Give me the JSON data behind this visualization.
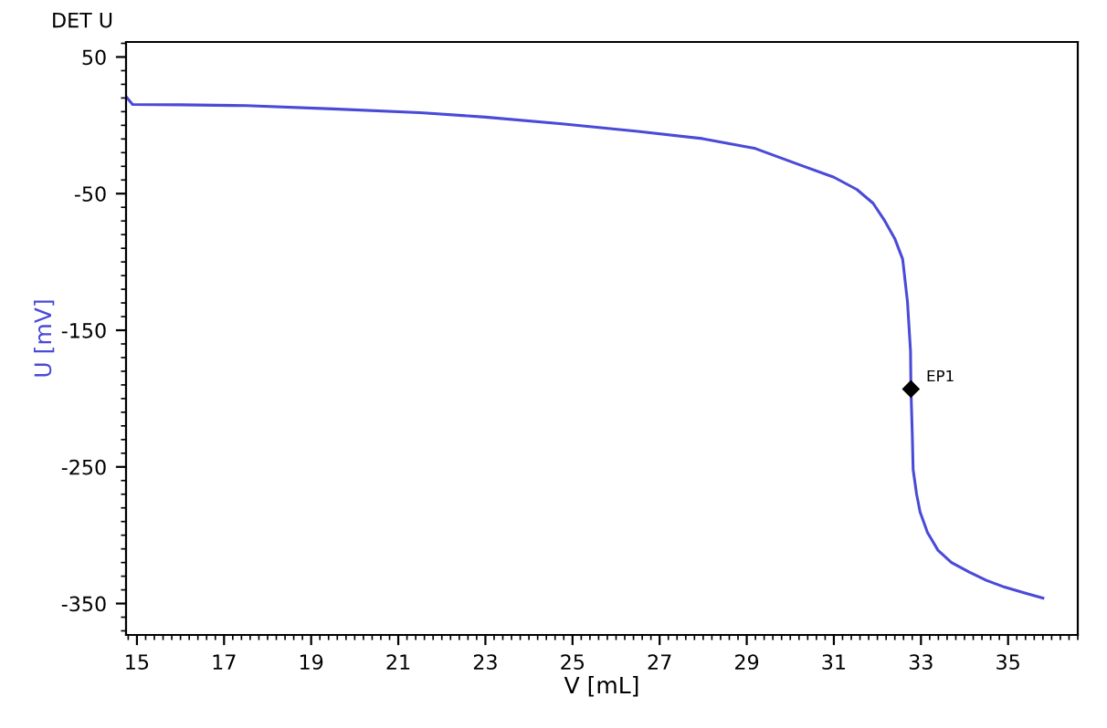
{
  "chart_data": {
    "type": "line",
    "title": "DET U",
    "xlabel": "V [mL]",
    "ylabel": "U [mV]",
    "x": [
      14.76,
      14.9,
      16.0,
      17.5,
      19.5,
      21.5,
      23.0,
      24.76,
      26.5,
      27.98,
      29.2,
      30.24,
      31.0,
      31.53,
      31.9,
      32.17,
      32.4,
      32.58,
      32.69,
      32.76,
      32.77,
      32.8,
      32.82,
      32.9,
      32.98,
      33.15,
      33.39,
      33.7,
      34.11,
      34.5,
      34.92,
      35.4,
      35.8
    ],
    "series": [
      {
        "color": "#4a4ad8",
        "values": [
          20.7,
          15.3,
          15.0,
          14.4,
          12.0,
          9.3,
          6.0,
          1.1,
          -4.5,
          -9.7,
          -17.0,
          -29.2,
          -38.0,
          -47.0,
          -57.0,
          -70.0,
          -83.0,
          -98.0,
          -129.0,
          -165.0,
          -193.0,
          -225.0,
          -252.0,
          -270.0,
          -283.0,
          -298.0,
          -311.0,
          -320.0,
          -327.0,
          -333.0,
          -338.0,
          -342.5,
          -346.0
        ]
      }
    ],
    "annotations": [
      {
        "text": "EP1",
        "x": 32.77,
        "y": -193
      }
    ],
    "xlim": [
      14.75,
      36.6
    ],
    "ylim": [
      -373,
      61
    ],
    "xticks": [
      15,
      17,
      19,
      21,
      23,
      25,
      27,
      29,
      31,
      33,
      35
    ],
    "yticks": [
      50,
      -50,
      -150,
      -250,
      -350
    ],
    "grid": false,
    "legend": false,
    "marker": "none",
    "line_style": "solid"
  }
}
